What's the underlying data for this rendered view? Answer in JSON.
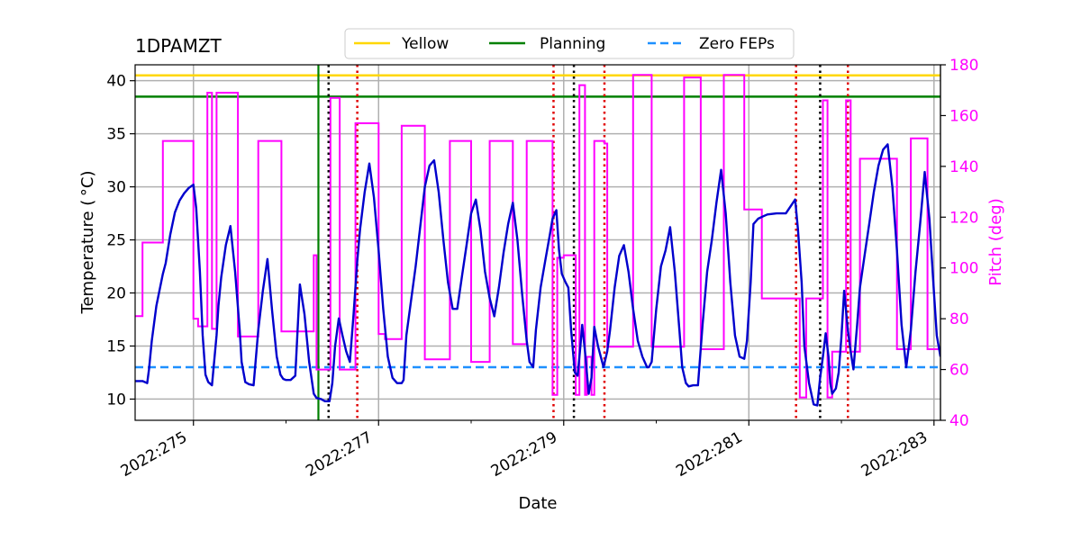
{
  "chart_data": {
    "type": "line",
    "title": "1DPAMZT",
    "xlabel": "Date",
    "ylabel": "Temperature ($^\\circ$C)",
    "ylabel_display": "Temperature ( °C)",
    "y2label": "Pitch (deg)",
    "xlim": [
      274.37,
      283.07
    ],
    "ylim": [
      8.0,
      41.5
    ],
    "y2lim": [
      40,
      180
    ],
    "grid": true,
    "legend_position": "top-center",
    "x_ticks": [
      {
        "value": 275,
        "label": "2022:275"
      },
      {
        "value": 277,
        "label": "2022:277"
      },
      {
        "value": 279,
        "label": "2022:279"
      },
      {
        "value": 281,
        "label": "2022:281"
      },
      {
        "value": 283,
        "label": "2022:283"
      }
    ],
    "y_ticks": [
      10,
      15,
      20,
      25,
      30,
      35,
      40
    ],
    "y2_ticks": [
      40,
      60,
      80,
      100,
      120,
      140,
      160,
      180
    ],
    "colors": {
      "yellow": "#ffd700",
      "planning": "#008000",
      "zero_feps": "#1e90ff",
      "temperature": "#0000cd",
      "pitch": "#ff00ff",
      "black_marker": "#000000",
      "red_marker": "#e00000",
      "grid": "#b0b0b0"
    },
    "legend": [
      {
        "name": "Yellow",
        "style": "solid",
        "color": "#ffd700"
      },
      {
        "name": "Planning",
        "style": "solid",
        "color": "#008000"
      },
      {
        "name": "Zero FEPs",
        "style": "dashed",
        "color": "#1e90ff"
      }
    ],
    "hlines": [
      {
        "name": "Yellow",
        "value": 40.5,
        "style": "solid"
      },
      {
        "name": "Planning",
        "value": 38.5,
        "style": "solid"
      },
      {
        "name": "Zero FEPs",
        "value": 13.0,
        "style": "dashed"
      }
    ],
    "vlines": [
      {
        "x": 276.35,
        "color": "green",
        "style": "solid"
      },
      {
        "x": 276.46,
        "color": "black",
        "style": "dotted"
      },
      {
        "x": 276.77,
        "color": "red",
        "style": "dotted"
      },
      {
        "x": 278.89,
        "color": "red",
        "style": "dotted"
      },
      {
        "x": 279.11,
        "color": "black",
        "style": "dotted"
      },
      {
        "x": 279.44,
        "color": "red",
        "style": "dotted"
      },
      {
        "x": 281.51,
        "color": "red",
        "style": "dotted"
      },
      {
        "x": 281.77,
        "color": "black",
        "style": "dotted"
      },
      {
        "x": 282.07,
        "color": "red",
        "style": "dotted"
      }
    ],
    "series": [
      {
        "name": "1DPAMZT temperature",
        "axis": "left",
        "x": [
          274.37,
          274.45,
          274.5,
          274.52,
          274.55,
          274.6,
          274.67,
          274.7,
          274.75,
          274.8,
          274.85,
          274.9,
          274.95,
          275.0,
          275.03,
          275.07,
          275.1,
          275.13,
          275.16,
          275.2,
          275.25,
          275.27,
          275.3,
          275.35,
          275.4,
          275.45,
          275.5,
          275.52,
          275.56,
          275.6,
          275.65,
          275.7,
          275.75,
          275.8,
          275.85,
          275.9,
          275.94,
          275.97,
          276.0,
          276.05,
          276.1,
          276.15,
          276.2,
          276.25,
          276.3,
          276.33,
          276.38,
          276.42,
          276.45,
          276.47,
          276.5,
          276.53,
          276.57,
          276.61,
          276.65,
          276.69,
          276.73,
          276.77,
          276.8,
          276.85,
          276.9,
          276.95,
          277.0,
          277.05,
          277.1,
          277.15,
          277.2,
          277.25,
          277.27,
          277.3,
          277.4,
          277.5,
          277.55,
          277.6,
          277.65,
          277.7,
          277.75,
          277.8,
          277.85,
          277.9,
          277.95,
          278.0,
          278.05,
          278.1,
          278.15,
          278.2,
          278.25,
          278.3,
          278.35,
          278.4,
          278.45,
          278.5,
          278.55,
          278.6,
          278.63,
          278.67,
          278.7,
          278.75,
          278.8,
          278.85,
          278.88,
          278.92,
          278.95,
          278.98,
          279.02,
          279.05,
          279.08,
          279.12,
          279.15,
          279.18,
          279.2,
          279.23,
          279.27,
          279.3,
          279.33,
          279.37,
          279.4,
          279.43,
          279.47,
          279.5,
          279.55,
          279.6,
          279.65,
          279.7,
          279.75,
          279.8,
          279.85,
          279.9,
          279.92,
          279.95,
          280.0,
          280.05,
          280.1,
          280.15,
          280.2,
          280.25,
          280.28,
          280.32,
          280.35,
          280.4,
          280.45,
          280.5,
          280.55,
          280.6,
          280.65,
          280.7,
          280.75,
          280.8,
          280.85,
          280.9,
          280.95,
          280.98,
          281.02,
          281.05,
          281.1,
          281.15,
          281.2,
          281.3,
          281.4,
          281.5,
          281.53,
          281.57,
          281.6,
          281.65,
          281.7,
          281.74,
          281.77,
          281.8,
          281.83,
          281.86,
          281.88,
          281.9,
          281.94,
          281.97,
          282.0,
          282.03,
          282.07,
          282.1,
          282.13,
          282.17,
          282.2,
          282.25,
          282.3,
          282.35,
          282.4,
          282.45,
          282.5,
          282.55,
          282.6,
          282.65,
          282.7,
          282.75,
          282.8,
          282.85,
          282.9,
          282.95,
          283.0,
          283.03,
          283.07
        ],
        "y": [
          11.7,
          11.7,
          11.5,
          12.8,
          15.5,
          18.8,
          21.8,
          22.8,
          25.5,
          27.6,
          28.7,
          29.4,
          29.9,
          30.2,
          28.0,
          22.0,
          16.0,
          12.3,
          11.6,
          11.3,
          16.0,
          18.8,
          21.5,
          24.5,
          26.3,
          22.0,
          16.5,
          13.5,
          11.6,
          11.4,
          11.3,
          16.5,
          20.2,
          23.2,
          18.3,
          14.0,
          12.3,
          11.9,
          11.8,
          11.8,
          12.2,
          20.8,
          18.0,
          13.5,
          10.5,
          10.1,
          10.0,
          9.8,
          9.8,
          9.8,
          11.5,
          15.0,
          17.6,
          16.0,
          14.5,
          13.5,
          18.0,
          23.0,
          26.0,
          29.5,
          32.2,
          29.0,
          24.0,
          18.5,
          14.0,
          12.0,
          11.5,
          11.5,
          11.8,
          16.0,
          22.5,
          30.0,
          32.0,
          32.5,
          29.5,
          25.0,
          21.0,
          18.5,
          18.5,
          21.5,
          24.5,
          27.5,
          28.8,
          26.0,
          22.0,
          19.5,
          17.8,
          20.5,
          23.8,
          26.5,
          28.5,
          25.0,
          20.0,
          15.5,
          13.5,
          13.0,
          16.5,
          20.5,
          23.0,
          25.5,
          27.0,
          27.8,
          24.0,
          21.8,
          21.0,
          20.5,
          16.5,
          12.5,
          12.2,
          15.0,
          17.0,
          14.5,
          10.5,
          12.0,
          16.8,
          15.0,
          14.0,
          13.0,
          14.5,
          16.5,
          20.5,
          23.5,
          24.5,
          22.0,
          18.5,
          15.5,
          14.0,
          13.0,
          13.0,
          13.5,
          18.5,
          22.5,
          24.0,
          26.2,
          22.0,
          16.5,
          13.0,
          11.5,
          11.2,
          11.3,
          11.3,
          17.0,
          22.0,
          25.0,
          28.5,
          31.6,
          27.5,
          21.0,
          16.0,
          14.0,
          13.8,
          15.5,
          21.0,
          26.5,
          27.0,
          27.2,
          27.4,
          27.5,
          27.5,
          28.8,
          26.0,
          21.0,
          15.0,
          11.5,
          9.5,
          9.4,
          12.0,
          14.0,
          16.2,
          14.0,
          11.5,
          10.5,
          11.0,
          12.5,
          15.8,
          20.2,
          16.5,
          14.5,
          12.8,
          17.0,
          20.5,
          23.5,
          26.5,
          29.5,
          32.0,
          33.5,
          34.0,
          30.0,
          24.0,
          17.0,
          13.0,
          16.5,
          22.0,
          26.5,
          31.4,
          27.0,
          20.0,
          16.0,
          14.0
        ]
      },
      {
        "name": "Pitch",
        "axis": "right",
        "x": [
          274.37,
          274.45,
          274.45,
          274.55,
          274.55,
          274.67,
          274.67,
          274.74,
          274.74,
          275.0,
          275.0,
          275.05,
          275.05,
          275.15,
          275.15,
          275.2,
          275.2,
          275.25,
          275.25,
          275.48,
          275.48,
          275.55,
          275.55,
          275.7,
          275.7,
          275.75,
          275.75,
          275.8,
          275.8,
          275.95,
          275.95,
          276.0,
          276.0,
          276.3,
          276.3,
          276.33,
          276.33,
          276.48,
          276.48,
          276.58,
          276.58,
          276.62,
          276.62,
          276.75,
          276.75,
          276.78,
          276.78,
          277.0,
          277.0,
          277.07,
          277.07,
          277.25,
          277.25,
          277.5,
          277.5,
          277.6,
          277.6,
          277.77,
          277.77,
          278.0,
          278.0,
          278.2,
          278.2,
          278.45,
          278.45,
          278.6,
          278.6,
          278.88,
          278.88,
          278.93,
          278.93,
          279.0,
          279.0,
          279.13,
          279.13,
          279.17,
          279.17,
          279.23,
          279.23,
          279.25,
          279.25,
          279.3,
          279.3,
          279.33,
          279.33,
          279.44,
          279.44,
          279.47,
          279.47,
          279.75,
          279.75,
          279.95,
          279.95,
          280.2,
          280.2,
          280.3,
          280.3,
          280.48,
          280.48,
          280.73,
          280.73,
          280.95,
          280.95,
          281.0,
          281.0,
          281.14,
          281.14,
          281.55,
          281.55,
          281.62,
          281.62,
          281.8,
          281.8,
          281.85,
          281.85,
          281.9,
          281.9,
          282.05,
          282.05,
          282.1,
          282.1,
          282.2,
          282.2,
          282.23,
          282.23,
          282.6,
          282.6,
          282.75,
          282.75,
          282.93,
          282.93,
          283.07
        ],
        "y": [
          81,
          81,
          110,
          110,
          110,
          110,
          150,
          150,
          150,
          150,
          80,
          80,
          77,
          77,
          169,
          169,
          76,
          76,
          169,
          169,
          73,
          73,
          73,
          73,
          150,
          150,
          150,
          150,
          150,
          150,
          75,
          75,
          75,
          75,
          105,
          105,
          60,
          60,
          167,
          167,
          60,
          60,
          60,
          60,
          157,
          157,
          157,
          157,
          74,
          74,
          72,
          72,
          156,
          156,
          64,
          64,
          64,
          64,
          150,
          150,
          63,
          63,
          150,
          150,
          70,
          70,
          150,
          150,
          50,
          50,
          104,
          104,
          105,
          105,
          50,
          50,
          172,
          172,
          50,
          50,
          65,
          65,
          50,
          50,
          150,
          150,
          149,
          149,
          69,
          69,
          176,
          176,
          69,
          69,
          69,
          69,
          175,
          175,
          68,
          68,
          176,
          176,
          123,
          123,
          123,
          123,
          88,
          88,
          49,
          49,
          88,
          88,
          166,
          166,
          49,
          49,
          67,
          67,
          166,
          166,
          67,
          67,
          143,
          143,
          143,
          143,
          68,
          68,
          151,
          151,
          68,
          68
        ]
      }
    ]
  }
}
